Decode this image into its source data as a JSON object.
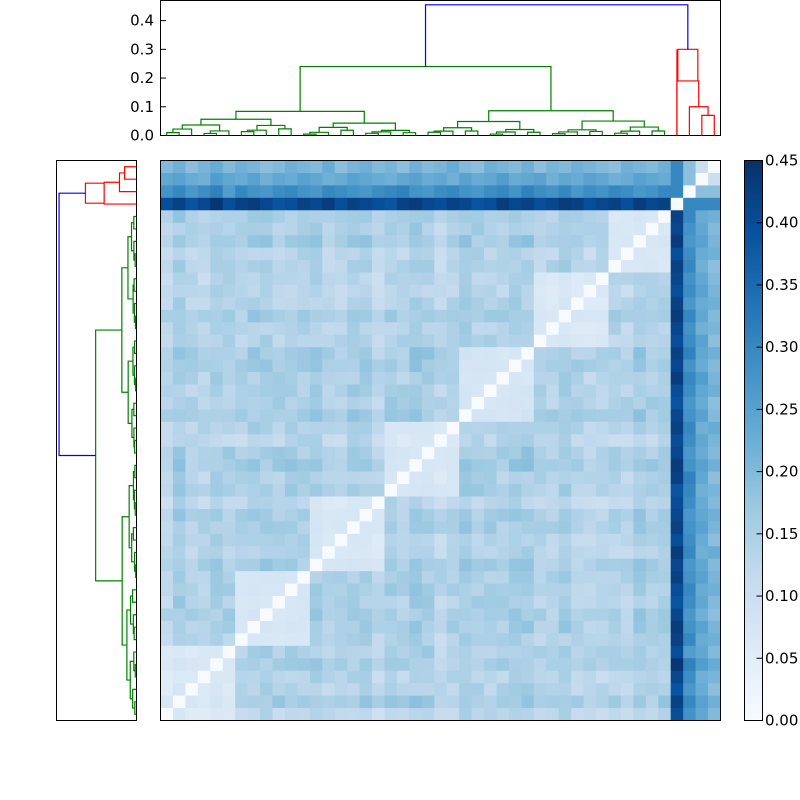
{
  "chart_data": {
    "type": "heatmap",
    "title": "",
    "n": 45,
    "colormap": {
      "name": "Blues",
      "min": 0.0,
      "max": 0.45,
      "stops": [
        "#f7fbff",
        "#deebf7",
        "#c6dbef",
        "#9ecae1",
        "#6baed6",
        "#4292c6",
        "#2171b5",
        "#08519c",
        "#08306b"
      ]
    },
    "colorbar_ticks": [
      "0.00",
      "0.05",
      "0.10",
      "0.15",
      "0.20",
      "0.25",
      "0.30",
      "0.35",
      "0.40",
      "0.45"
    ],
    "top_dendrogram": {
      "ylim": [
        0,
        0.47
      ],
      "yticks": [
        "0.0",
        "0.1",
        "0.2",
        "0.3",
        "0.4"
      ],
      "link_colors": {
        "low": "#008000",
        "high": "#ff0000",
        "root": "#0000ff"
      },
      "root_height": 0.455,
      "main_cluster_height": 0.24,
      "outlier_heights": [
        0.3,
        0.19,
        0.1,
        0.07
      ]
    },
    "left_dendrogram": {
      "root_height": 0.455,
      "main_cluster_height": 0.24,
      "outlier_heights": [
        0.3,
        0.19,
        0.1,
        0.07
      ]
    },
    "clusters": {
      "main_size": 41,
      "outlier_profile": [
        [
          0.4,
          0.42,
          0.39,
          0.41,
          0.44,
          0.4,
          0.42,
          0.43,
          0.41,
          0.39,
          0.4,
          0.42,
          0.41,
          0.43,
          0.4,
          0.42,
          0.41,
          0.4,
          0.39,
          0.42,
          0.43,
          0.41,
          0.4,
          0.42,
          0.41,
          0.39,
          0.4,
          0.43,
          0.41,
          0.42,
          0.4,
          0.41,
          0.43,
          0.42,
          0.4,
          0.41,
          0.42,
          0.4,
          0.43,
          0.41,
          0.42
        ],
        [
          0.28,
          0.3,
          0.27,
          0.29,
          0.31,
          0.26,
          0.3,
          0.28,
          0.27,
          0.29,
          0.3,
          0.28,
          0.27,
          0.3,
          0.29,
          0.28,
          0.27,
          0.29,
          0.3,
          0.31,
          0.28,
          0.27,
          0.29,
          0.3,
          0.28,
          0.27,
          0.29,
          0.3,
          0.28,
          0.31,
          0.29,
          0.28,
          0.3,
          0.27,
          0.29,
          0.28,
          0.3,
          0.29,
          0.27,
          0.28,
          0.3
        ],
        [
          0.24,
          0.25,
          0.23,
          0.22,
          0.26,
          0.24,
          0.23,
          0.25,
          0.22,
          0.24,
          0.23,
          0.25,
          0.24,
          0.22,
          0.23,
          0.25,
          0.24,
          0.23,
          0.22,
          0.24,
          0.25,
          0.23,
          0.24,
          0.22,
          0.25,
          0.23,
          0.24,
          0.26,
          0.23,
          0.24,
          0.25,
          0.22,
          0.24,
          0.23,
          0.25,
          0.24,
          0.22,
          0.23,
          0.25,
          0.24,
          0.23
        ],
        [
          0.2,
          0.22,
          0.19,
          0.21,
          0.23,
          0.2,
          0.22,
          0.21,
          0.19,
          0.2,
          0.22,
          0.21,
          0.2,
          0.23,
          0.19,
          0.21,
          0.22,
          0.2,
          0.21,
          0.19,
          0.22,
          0.2,
          0.21,
          0.23,
          0.2,
          0.19,
          0.22,
          0.21,
          0.2,
          0.22,
          0.19,
          0.21,
          0.2,
          0.22,
          0.21,
          0.2,
          0.19,
          0.22,
          0.21,
          0.2,
          0.22
        ]
      ],
      "outlier_block": [
        [
          0.0,
          0.3,
          0.3,
          0.3
        ],
        [
          0.3,
          0.0,
          0.19,
          0.19
        ],
        [
          0.3,
          0.19,
          0.0,
          0.1
        ],
        [
          0.3,
          0.19,
          0.1,
          0.0
        ]
      ],
      "main_block_range": [
        0.03,
        0.24
      ]
    }
  }
}
